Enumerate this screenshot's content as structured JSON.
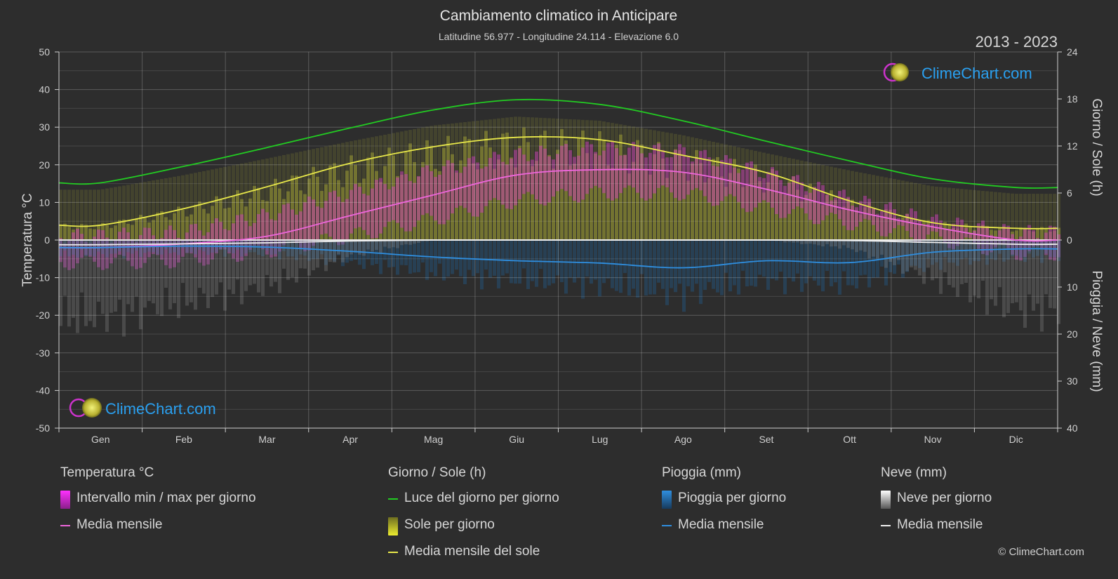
{
  "header": {
    "title": "Cambiamento climatico in Anticipare",
    "subtitle": "Latitudine 56.977 - Longitudine 24.114 - Elevazione 6.0",
    "years": "2013 - 2023",
    "logo_text": "ClimeChart.com",
    "copyright": "© ClimeChart.com"
  },
  "colors": {
    "background": "#2d2d2d",
    "daylight": "#22cc22",
    "sun_mean": "#e8e84a",
    "temp_mean": "#ee66dd",
    "rain_mean": "#2f8fe0",
    "snow_mean": "#f0f0f0",
    "temp_range": "#d63cc8",
    "sun_fill": "#b8b838",
    "rain_fill": "#1f6aa8",
    "snow_fill": "#8a8a8a",
    "logo_text": "#2aa0f0"
  },
  "chart_data": {
    "type": "line",
    "categories": [
      "Gen",
      "Feb",
      "Mar",
      "Apr",
      "Mag",
      "Giu",
      "Lug",
      "Ago",
      "Set",
      "Ott",
      "Nov",
      "Dic"
    ],
    "left_axis": {
      "label": "Temperatura °C",
      "range": [
        -50,
        50
      ],
      "ticks": [
        "50",
        "40",
        "30",
        "20",
        "10",
        "0",
        "-10",
        "-20",
        "-30",
        "-40",
        "-50"
      ]
    },
    "right_axis_top": {
      "label": "Giorno / Sole (h)",
      "range": [
        0,
        24
      ],
      "ticks": [
        "24",
        "18",
        "12",
        "6",
        "0"
      ]
    },
    "right_axis_bottom": {
      "label": "Pioggia / Neve (mm)",
      "range": [
        0,
        40
      ],
      "ticks": [
        "10",
        "20",
        "30",
        "40"
      ]
    },
    "grid": true,
    "series": [
      {
        "name": "Luce del giorno per giorno",
        "axis": "hours",
        "values": [
          7.3,
          9.4,
          11.8,
          14.3,
          16.6,
          17.9,
          17.3,
          15.2,
          12.6,
          10.1,
          7.8,
          6.7
        ]
      },
      {
        "name": "Media mensile del sole",
        "axis": "hours",
        "values": [
          1.9,
          4.0,
          6.8,
          9.8,
          11.9,
          13.1,
          12.8,
          10.8,
          8.6,
          5.0,
          2.2,
          1.5
        ]
      },
      {
        "name": "Media mensile",
        "group": "Temperatura °C",
        "axis": "temperature",
        "values": [
          -2.0,
          -1.0,
          1.0,
          6.5,
          12.0,
          17.3,
          18.7,
          18.0,
          13.5,
          8.0,
          3.5,
          0.0
        ]
      },
      {
        "name": "Media mensile",
        "group": "Pioggia (mm)",
        "axis": "precipitation",
        "values": [
          1.6,
          1.3,
          1.5,
          2.4,
          3.6,
          4.4,
          4.9,
          5.9,
          4.4,
          4.8,
          2.6,
          1.9
        ]
      },
      {
        "name": "Media mensile",
        "group": "Neve (mm)",
        "axis": "precipitation",
        "values": [
          1.0,
          0.8,
          0.6,
          0.2,
          0.0,
          0.0,
          0.0,
          0.0,
          0.0,
          0.1,
          0.5,
          0.9
        ]
      }
    ],
    "temp_daily_range": {
      "name": "Intervallo min / max per giorno",
      "max": [
        1.0,
        2.0,
        6.5,
        12.5,
        18.5,
        22.5,
        24.5,
        23.5,
        18.0,
        11.0,
        5.0,
        2.0
      ],
      "min": [
        -6.0,
        -5.5,
        -3.0,
        1.0,
        5.5,
        10.5,
        12.5,
        12.5,
        8.5,
        4.5,
        0.5,
        -3.5
      ]
    },
    "sun_daily_label": "Sole per giorno",
    "rain_daily_label": "Pioggia per giorno",
    "snow_daily_label": "Neve per giorno"
  },
  "legend": [
    {
      "title": "Temperatura °C",
      "items": [
        {
          "label": "Intervallo min / max per giorno",
          "kind": "box",
          "color": "#e020e0"
        },
        {
          "label": "Media mensile",
          "kind": "line",
          "color": "#ee66dd"
        }
      ]
    },
    {
      "title": "Giorno / Sole (h)",
      "items": [
        {
          "label": "Luce del giorno per giorno",
          "kind": "line",
          "color": "#22cc22"
        },
        {
          "label": "Sole per giorno",
          "kind": "box",
          "color": "#d8d830"
        },
        {
          "label": "Media mensile del sole",
          "kind": "line",
          "color": "#e8e84a"
        }
      ]
    },
    {
      "title": "Pioggia (mm)",
      "items": [
        {
          "label": "Pioggia per giorno",
          "kind": "box",
          "color": "#2f8fe0"
        },
        {
          "label": "Media mensile",
          "kind": "line",
          "color": "#2f8fe0"
        }
      ]
    },
    {
      "title": "Neve (mm)",
      "items": [
        {
          "label": "Neve per giorno",
          "kind": "box",
          "color": "#d0d0d0"
        },
        {
          "label": "Media mensile",
          "kind": "line",
          "color": "#f0f0f0"
        }
      ]
    }
  ]
}
